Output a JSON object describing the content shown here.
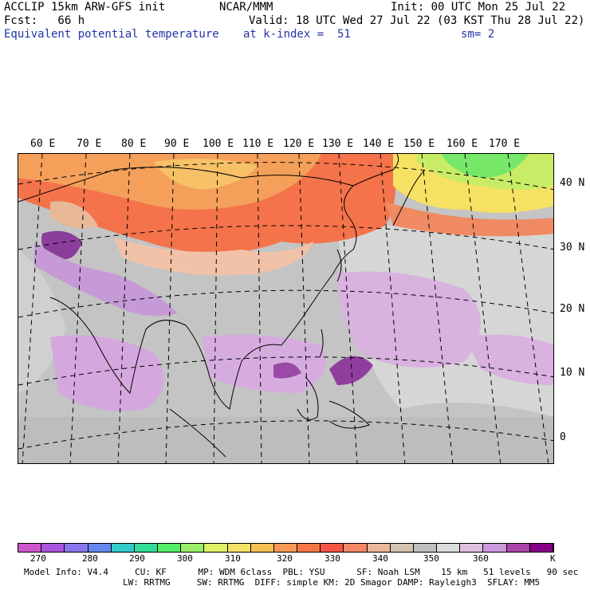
{
  "header": {
    "line1_left": "ACCLIP 15km ARW-GFS init",
    "line1_center": "NCAR/MMM",
    "line1_right": "Init: 00 UTC Mon 25 Jul 22",
    "line2_left": "Fcst:   66 h",
    "line2_right": "Valid: 18 UTC Wed 27 Jul 22 (03 KST Thu 28 Jul 22)",
    "line3_left": "Equivalent potential temperature",
    "line3_center": "at k-index =  51",
    "line3_right": "sm= 2"
  },
  "map": {
    "lon_labels": [
      "60 E",
      "70 E",
      "80 E",
      "90 E",
      "100 E",
      "110 E",
      "120 E",
      "130 E",
      "140 E",
      "150 E",
      "160 E",
      "170 E"
    ],
    "lat_labels": [
      "40 N",
      "30 N",
      "20 N",
      "10 N",
      "0"
    ]
  },
  "colorbar": {
    "colors": [
      "#cc55cc",
      "#aa55dd",
      "#8877ee",
      "#6688ee",
      "#33cccc",
      "#33dd99",
      "#55ee66",
      "#99f066",
      "#ddf066",
      "#f5e266",
      "#f7c055",
      "#f79955",
      "#f77744",
      "#f45544",
      "#f48866",
      "#e8b899",
      "#d4c2b2",
      "#c0c0c0",
      "#dddddd",
      "#e0c0e0",
      "#cc99dd",
      "#aa44aa",
      "#880088"
    ],
    "tick_labels": [
      "270",
      "280",
      "290",
      "300",
      "310",
      "320",
      "330",
      "340",
      "350",
      "360"
    ],
    "unit": "K"
  },
  "footer": {
    "line1": "Model Info: V4.4     CU: KF      MP: WDM 6class  PBL: YSU      SF: Noah LSM    15 km   51 levels   90 sec",
    "line2": "LW: RRTMG     SW: RRTMG  DIFF: simple KM: 2D Smagor DAMP: Rayleigh3  SFLAY: MM5"
  }
}
